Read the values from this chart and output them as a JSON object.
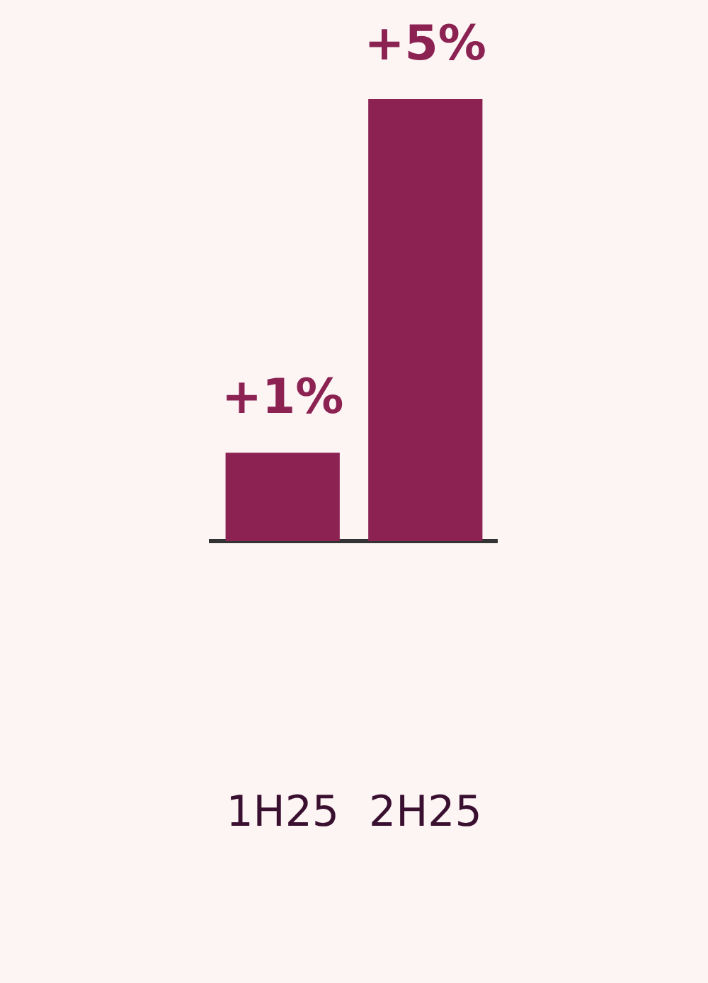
{
  "chart_data": {
    "type": "bar",
    "categories": [
      "1H25",
      "2H25"
    ],
    "values": [
      1,
      5
    ],
    "value_labels": [
      "+1%",
      "+5%"
    ],
    "color": "#8b2252"
  }
}
